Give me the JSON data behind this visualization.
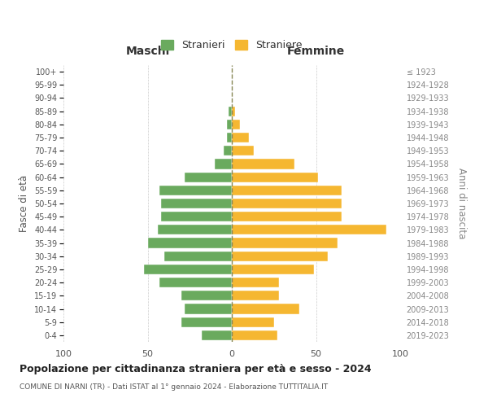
{
  "age_groups": [
    "0-4",
    "5-9",
    "10-14",
    "15-19",
    "20-24",
    "25-29",
    "30-34",
    "35-39",
    "40-44",
    "45-49",
    "50-54",
    "55-59",
    "60-64",
    "65-69",
    "70-74",
    "75-79",
    "80-84",
    "85-89",
    "90-94",
    "95-99",
    "100+"
  ],
  "birth_years": [
    "2019-2023",
    "2014-2018",
    "2009-2013",
    "2004-2008",
    "1999-2003",
    "1994-1998",
    "1989-1993",
    "1984-1988",
    "1979-1983",
    "1974-1978",
    "1969-1973",
    "1964-1968",
    "1959-1963",
    "1954-1958",
    "1949-1953",
    "1944-1948",
    "1939-1943",
    "1934-1938",
    "1929-1933",
    "1924-1928",
    "≤ 1923"
  ],
  "males": [
    18,
    30,
    28,
    30,
    43,
    52,
    40,
    50,
    44,
    42,
    42,
    43,
    28,
    10,
    5,
    3,
    3,
    2,
    0,
    0,
    0
  ],
  "females": [
    27,
    25,
    40,
    28,
    28,
    49,
    57,
    63,
    92,
    65,
    65,
    65,
    51,
    37,
    13,
    10,
    5,
    2,
    0,
    0,
    0
  ],
  "male_color": "#6aaa5e",
  "female_color": "#f5b731",
  "background_color": "#ffffff",
  "grid_color": "#cccccc",
  "title": "Popolazione per cittadinanza straniera per età e sesso - 2024",
  "subtitle": "COMUNE DI NARNI (TR) - Dati ISTAT al 1° gennaio 2024 - Elaborazione TUTTITALIA.IT",
  "xlabel_left": "Maschi",
  "xlabel_right": "Femmine",
  "ylabel_left": "Fasce di età",
  "ylabel_right": "Anni di nascita",
  "legend_stranieri": "Stranieri",
  "legend_straniere": "Straniere",
  "xlim": 100,
  "dashed_line_color": "#888855"
}
